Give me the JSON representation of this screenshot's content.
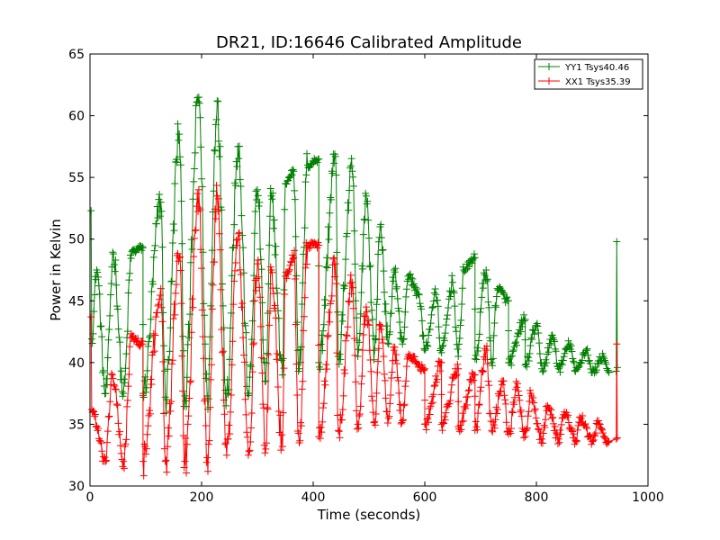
{
  "chart_data": {
    "type": "line",
    "title": "DR21, ID:16646 Calibrated Amplitude",
    "xlabel": "Time (seconds)",
    "ylabel": "Power in Kelvin",
    "xlim": [
      0,
      1000
    ],
    "ylim": [
      30,
      65
    ],
    "xticks": [
      "0",
      "200",
      "400",
      "600",
      "800",
      "1000"
    ],
    "yticks": [
      "30",
      "35",
      "40",
      "45",
      "50",
      "55",
      "60",
      "65"
    ],
    "grid": false,
    "legend_position": "top-right",
    "marker": "+",
    "series": [
      {
        "name": "YY1 Tsys40.46",
        "color": "#008000",
        "start": [
          [
            2,
            52.3
          ],
          [
            3,
            41.9
          ]
        ],
        "end": [
          [
            943,
            39.3
          ],
          [
            944,
            49.8
          ],
          [
            945,
            39.6
          ]
        ],
        "peaks": [
          [
            12,
            47.5
          ],
          [
            42,
            48.8
          ],
          [
            75,
            49.0
          ],
          [
            95,
            49.3
          ],
          [
            127,
            53.0
          ],
          [
            160,
            58.5
          ],
          [
            195,
            61.5
          ],
          [
            228,
            61.2
          ],
          [
            265,
            57.5
          ],
          [
            300,
            54.0
          ],
          [
            325,
            53.5
          ],
          [
            350,
            54.5
          ],
          [
            365,
            55.5
          ],
          [
            390,
            56.0
          ],
          [
            410,
            56.5
          ],
          [
            440,
            56.7
          ],
          [
            470,
            55.5
          ],
          [
            495,
            53.5
          ],
          [
            520,
            51.0
          ],
          [
            545,
            47.5
          ],
          [
            570,
            47.0
          ],
          [
            590,
            45.5
          ],
          [
            620,
            45.5
          ],
          [
            650,
            46.5
          ],
          [
            670,
            47.5
          ],
          [
            690,
            48.5
          ],
          [
            710,
            47.5
          ],
          [
            730,
            46.0
          ],
          [
            750,
            45.0
          ],
          [
            780,
            43.5
          ],
          [
            800,
            43.0
          ],
          [
            830,
            42.0
          ],
          [
            860,
            41.5
          ],
          [
            890,
            41.0
          ],
          [
            920,
            40.5
          ]
        ],
        "troughs": [
          [
            28,
            37.5
          ],
          [
            60,
            37.5
          ],
          [
            95,
            37.5
          ],
          [
            135,
            37.2
          ],
          [
            170,
            37.3
          ],
          [
            210,
            37.3
          ],
          [
            245,
            37.5
          ],
          [
            285,
            37.5
          ],
          [
            315,
            38.5
          ],
          [
            345,
            39.0
          ],
          [
            375,
            39.5
          ],
          [
            410,
            40.0
          ],
          [
            445,
            40.5
          ],
          [
            480,
            40.5
          ],
          [
            510,
            41.0
          ],
          [
            535,
            41.5
          ],
          [
            560,
            41.5
          ],
          [
            600,
            41.0
          ],
          [
            630,
            40.8
          ],
          [
            660,
            40.5
          ],
          [
            690,
            40.3
          ],
          [
            720,
            40.0
          ],
          [
            750,
            40.0
          ],
          [
            780,
            39.8
          ],
          [
            810,
            39.5
          ],
          [
            840,
            39.5
          ],
          [
            870,
            39.3
          ],
          [
            900,
            39.2
          ],
          [
            930,
            39.2
          ]
        ]
      },
      {
        "name": "XX1 Tsys35.39",
        "color": "#ff0000",
        "start": [
          [
            2,
            43.7
          ],
          [
            3,
            36.2
          ]
        ],
        "end": [
          [
            943,
            33.8
          ],
          [
            944,
            41.5
          ],
          [
            945,
            33.9
          ]
        ],
        "peaks": [
          [
            40,
            39.0
          ],
          [
            75,
            42.0
          ],
          [
            95,
            41.5
          ],
          [
            127,
            46.0
          ],
          [
            160,
            48.5
          ],
          [
            195,
            54.0
          ],
          [
            228,
            53.5
          ],
          [
            265,
            50.0
          ],
          [
            300,
            48.0
          ],
          [
            325,
            47.5
          ],
          [
            350,
            47.0
          ],
          [
            365,
            48.5
          ],
          [
            390,
            49.5
          ],
          [
            410,
            49.5
          ],
          [
            440,
            48.0
          ],
          [
            470,
            46.5
          ],
          [
            495,
            44.5
          ],
          [
            520,
            43.0
          ],
          [
            545,
            41.0
          ],
          [
            570,
            40.5
          ],
          [
            600,
            39.5
          ],
          [
            630,
            40.0
          ],
          [
            660,
            39.5
          ],
          [
            690,
            39.0
          ],
          [
            710,
            41.0
          ],
          [
            740,
            38.5
          ],
          [
            765,
            38.0
          ],
          [
            790,
            37.5
          ],
          [
            820,
            36.5
          ],
          [
            850,
            36.0
          ],
          [
            880,
            35.5
          ],
          [
            910,
            35.0
          ]
        ],
        "troughs": [
          [
            28,
            32.0
          ],
          [
            60,
            32.0
          ],
          [
            95,
            32.0
          ],
          [
            135,
            32.0
          ],
          [
            170,
            32.0
          ],
          [
            210,
            32.3
          ],
          [
            245,
            32.5
          ],
          [
            285,
            32.8
          ],
          [
            315,
            33.0
          ],
          [
            345,
            33.2
          ],
          [
            375,
            33.5
          ],
          [
            410,
            34.0
          ],
          [
            445,
            34.5
          ],
          [
            480,
            35.0
          ],
          [
            510,
            35.2
          ],
          [
            535,
            35.5
          ],
          [
            560,
            35.3
          ],
          [
            600,
            35.0
          ],
          [
            630,
            35.0
          ],
          [
            660,
            34.8
          ],
          [
            690,
            34.5
          ],
          [
            720,
            34.5
          ],
          [
            750,
            34.2
          ],
          [
            780,
            34.0
          ],
          [
            810,
            33.8
          ],
          [
            840,
            33.8
          ],
          [
            870,
            33.7
          ],
          [
            900,
            33.6
          ],
          [
            930,
            33.6
          ]
        ]
      }
    ]
  }
}
